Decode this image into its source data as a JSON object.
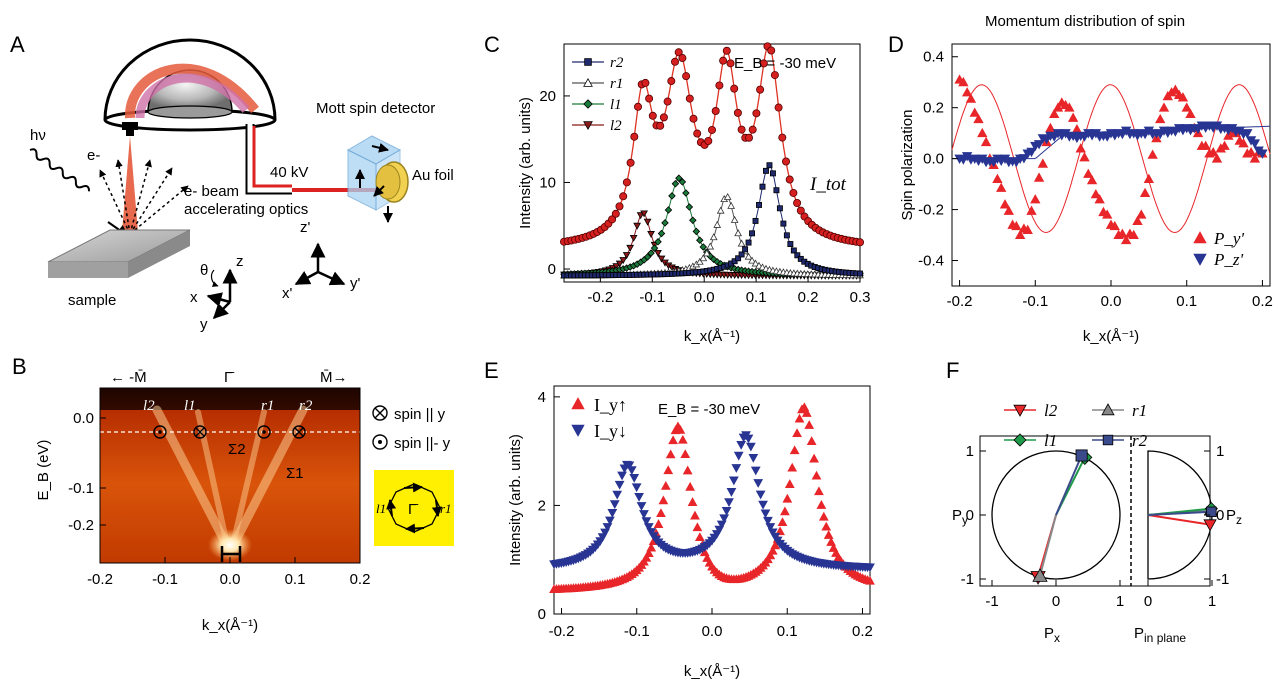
{
  "figure": {
    "panel_letters": [
      "A",
      "B",
      "C",
      "D",
      "E",
      "F"
    ]
  },
  "panel_a": {
    "photon_label": "hν",
    "electron_label": "e-",
    "beam_label_1": "e- beam",
    "beam_label_2": "accelerating optics",
    "voltage_label": "40 kV",
    "detector_title": "Mott spin detector",
    "foil_label": "Au foil",
    "sample_label": "sample",
    "axes_sample": [
      "z",
      "x",
      "y",
      "θ"
    ],
    "axes_detector": [
      "z'",
      "x'",
      "y'"
    ]
  },
  "panel_b": {
    "top_labels": [
      "← -M̄",
      "Γ̄",
      "M̄→"
    ],
    "band_labels": [
      "l2",
      "l1",
      "r1",
      "r2"
    ],
    "sigma_labels": [
      "Σ2",
      "Σ1"
    ],
    "ylabel": "E_B (eV)",
    "xlabel": "k_x(Å⁻¹)",
    "yticks": [
      "0.0",
      "-0.1",
      "-0.2"
    ],
    "xticks": [
      "-0.2",
      "-0.1",
      "0.0",
      "0.1",
      "0.2"
    ],
    "legend_spin_y": "spin || y",
    "legend_spin_minus_y": "spin ||- y",
    "inset_labels": [
      "l1",
      "Γ̄",
      "r1"
    ],
    "colors": {
      "inset_bg": "#ffef00"
    }
  },
  "chart_data": [
    {
      "panel": "C",
      "type": "line",
      "annotation": "E_B = -30 meV",
      "total_label": "I_tot",
      "xlabel": "k_x(Å⁻¹)",
      "ylabel": "Intensity (arb. units)",
      "xlim": [
        -0.27,
        0.3
      ],
      "ylim": [
        -1.5,
        26
      ],
      "xticks": [
        "-0.2",
        "-0.1",
        "0.0",
        "0.1",
        "0.2",
        "0.3"
      ],
      "yticks": [
        "0",
        "10",
        "20"
      ],
      "legend": [
        "r2",
        "r1",
        "l1",
        "l2"
      ],
      "peaks": [
        {
          "name": "l2",
          "center": -0.118,
          "height": 7.3,
          "width": 0.022,
          "color": "#8b1a1a",
          "marker": "tri-down"
        },
        {
          "name": "l1",
          "center": -0.048,
          "height": 11.3,
          "width": 0.03,
          "color": "#1a7a3a",
          "marker": "diamond"
        },
        {
          "name": "r1",
          "center": 0.043,
          "height": 9.2,
          "width": 0.024,
          "color": "#555555",
          "marker": "tri-up-open"
        },
        {
          "name": "r2",
          "center": 0.125,
          "height": 12.8,
          "width": 0.026,
          "color": "#1f2a6e",
          "marker": "square"
        }
      ],
      "total_peaks": [
        {
          "x": -0.118,
          "y": 18
        },
        {
          "x": -0.048,
          "y": 22
        },
        {
          "x": 0.043,
          "y": 21
        },
        {
          "x": 0.125,
          "y": 23.8
        }
      ]
    },
    {
      "panel": "D",
      "type": "scatter",
      "title": "Momentum distribution of spin",
      "xlabel": "k_x(Å⁻¹)",
      "ylabel": "Spin polarization",
      "xlim": [
        -0.21,
        0.21
      ],
      "ylim": [
        -0.5,
        0.45
      ],
      "xticks": [
        "-0.2",
        "-0.1",
        "0.0",
        "0.1",
        "0.2"
      ],
      "yticks": [
        "0.4",
        "0.2",
        "0.0",
        "-0.2",
        "-0.4"
      ],
      "series": [
        {
          "name": "P_y'",
          "color": "#e8262a",
          "marker": "tri-up",
          "x": [
            -0.2,
            -0.19,
            -0.18,
            -0.17,
            -0.16,
            -0.15,
            -0.14,
            -0.13,
            -0.12,
            -0.11,
            -0.1,
            -0.09,
            -0.08,
            -0.07,
            -0.06,
            -0.05,
            -0.04,
            -0.03,
            -0.02,
            -0.01,
            0.0,
            0.01,
            0.02,
            0.03,
            0.04,
            0.05,
            0.06,
            0.07,
            0.08,
            0.09,
            0.1,
            0.11,
            0.12,
            0.13,
            0.14,
            0.15,
            0.16,
            0.17,
            0.18,
            0.19,
            0.2
          ],
          "y": [
            0.31,
            0.26,
            0.18,
            0.1,
            0.0,
            -0.08,
            -0.18,
            -0.26,
            -0.3,
            -0.28,
            -0.16,
            -0.02,
            0.12,
            0.2,
            0.21,
            0.16,
            0.04,
            -0.06,
            -0.14,
            -0.21,
            -0.26,
            -0.3,
            -0.32,
            -0.3,
            -0.22,
            -0.08,
            0.08,
            0.2,
            0.26,
            0.25,
            0.2,
            0.12,
            0.05,
            0.02,
            0.0,
            0.05,
            0.1,
            0.07,
            0.02,
            0.0,
            0.02
          ]
        },
        {
          "name": "P_z'",
          "color": "#283593",
          "marker": "tri-down",
          "x": [
            -0.2,
            -0.19,
            -0.18,
            -0.17,
            -0.16,
            -0.15,
            -0.14,
            -0.13,
            -0.12,
            -0.11,
            -0.1,
            -0.09,
            -0.08,
            -0.07,
            -0.06,
            -0.05,
            -0.04,
            -0.03,
            -0.02,
            -0.01,
            0.0,
            0.01,
            0.02,
            0.03,
            0.04,
            0.05,
            0.06,
            0.07,
            0.08,
            0.09,
            0.1,
            0.11,
            0.12,
            0.13,
            0.14,
            0.15,
            0.16,
            0.17,
            0.18,
            0.19,
            0.2
          ],
          "y": [
            0.0,
            0.01,
            0.0,
            0.0,
            -0.01,
            0.0,
            0.0,
            -0.01,
            0.0,
            0.02,
            0.05,
            0.08,
            0.09,
            0.1,
            0.1,
            0.09,
            0.09,
            0.1,
            0.1,
            0.09,
            0.1,
            0.1,
            0.11,
            0.1,
            0.1,
            0.11,
            0.1,
            0.11,
            0.11,
            0.12,
            0.12,
            0.12,
            0.13,
            0.13,
            0.13,
            0.12,
            0.12,
            0.11,
            0.1,
            0.06,
            0.02
          ]
        }
      ]
    },
    {
      "panel": "E",
      "type": "line",
      "annotation": "E_B = -30 meV",
      "xlabel": "k_x(Å⁻¹)",
      "ylabel": "Intensity (arb. units)",
      "xlim": [
        -0.21,
        0.21
      ],
      "ylim": [
        0,
        4.2
      ],
      "xticks": [
        "-0.2",
        "-0.1",
        "0.0",
        "0.1",
        "0.2"
      ],
      "yticks": [
        "0",
        "2",
        "4"
      ],
      "series": [
        {
          "name": "I_y↑",
          "color": "#e8262a",
          "marker": "tri-up",
          "peaks": [
            {
              "x": -0.045,
              "y": 3.6
            },
            {
              "x": 0.122,
              "y": 3.85
            }
          ],
          "base": 0.45
        },
        {
          "name": "I_y↓",
          "color": "#283593",
          "marker": "tri-down",
          "peaks": [
            {
              "x": -0.112,
              "y": 2.8
            },
            {
              "x": 0.045,
              "y": 3.35
            }
          ],
          "base": 0.9
        }
      ]
    },
    {
      "panel": "F",
      "type": "scatter",
      "xlabel_left": "P_x",
      "ylabel_left": "P_y",
      "xlabel_right": "P_in plane",
      "ylabel_right": "P_z",
      "xticks_left": [
        "-1",
        "0",
        "1"
      ],
      "yticks_left": [
        "1",
        "0",
        "-1"
      ],
      "xticks_right": [
        "0",
        "1"
      ],
      "yticks_right": [
        "1",
        "0",
        "-1"
      ],
      "legend": [
        "l2",
        "r1",
        "l1",
        "r2"
      ],
      "vectors_left": [
        {
          "name": "l2",
          "px": -0.28,
          "py": -0.97,
          "color": "#e8262a"
        },
        {
          "name": "r1",
          "px": -0.25,
          "py": -0.95,
          "color": "#888888"
        },
        {
          "name": "l1",
          "px": 0.45,
          "py": 0.9,
          "color": "#1f9a4a"
        },
        {
          "name": "r2",
          "px": 0.4,
          "py": 0.93,
          "color": "#3a4a8a"
        }
      ],
      "vectors_right": [
        {
          "name": "l2",
          "p_in": 0.97,
          "pz": -0.15,
          "color": "#e8262a"
        },
        {
          "name": "r1",
          "p_in": 0.98,
          "pz": 0.08,
          "color": "#888888"
        },
        {
          "name": "l1",
          "p_in": 0.99,
          "pz": 0.1,
          "color": "#1f9a4a"
        },
        {
          "name": "r2",
          "p_in": 0.99,
          "pz": 0.05,
          "color": "#3a4a8a"
        }
      ]
    }
  ]
}
